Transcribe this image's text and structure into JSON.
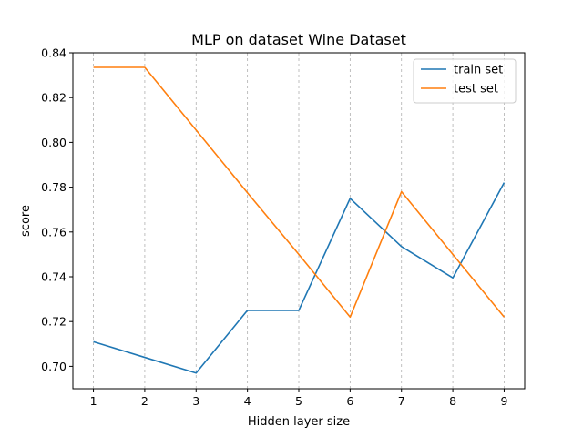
{
  "chart_data": {
    "type": "line",
    "title": "MLP on dataset Wine Dataset",
    "xlabel": "Hidden layer size",
    "ylabel": "score",
    "x": [
      1,
      2,
      3,
      4,
      5,
      6,
      7,
      8,
      9
    ],
    "xlim": [
      0.6,
      9.4
    ],
    "ylim": [
      0.69,
      0.84
    ],
    "xticks": [
      "1",
      "2",
      "3",
      "4",
      "5",
      "6",
      "7",
      "8",
      "9"
    ],
    "yticks": [
      "0.70",
      "0.72",
      "0.74",
      "0.76",
      "0.78",
      "0.80",
      "0.82",
      "0.84"
    ],
    "grid": "vertical-dashed",
    "legend_position": "top-right",
    "series": [
      {
        "name": "train set",
        "color": "#1f77b4",
        "values": [
          0.711,
          0.704,
          0.697,
          0.725,
          0.725,
          0.775,
          0.7535,
          0.7395,
          0.782
        ]
      },
      {
        "name": "test set",
        "color": "#ff7f0e",
        "values": [
          0.8335,
          0.8335,
          0.8055,
          0.7775,
          0.75,
          0.722,
          0.778,
          0.75,
          0.722
        ]
      }
    ]
  }
}
